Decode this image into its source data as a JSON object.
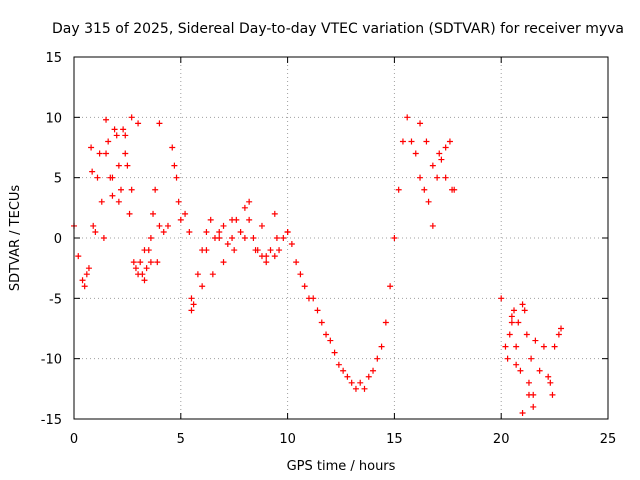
{
  "chart_data": {
    "type": "scatter",
    "title": "Day 315 of 2025, Sidereal Day-to-day VTEC variation (SDTVAR) for receiver myva",
    "xlabel": "GPS time / hours",
    "ylabel": "SDTVAR / TECUs",
    "xlim": [
      0,
      25
    ],
    "ylim": [
      -15,
      15
    ],
    "xticks": [
      0,
      5,
      10,
      15,
      20,
      25
    ],
    "yticks": [
      -15,
      -10,
      -5,
      0,
      5,
      10,
      15
    ],
    "grid": true,
    "marker": "plus",
    "color": "#ff0000",
    "series": [
      {
        "name": "SDTVAR",
        "x": [
          0.0,
          0.2,
          0.4,
          0.5,
          0.6,
          0.7,
          0.8,
          0.85,
          0.9,
          1.0,
          1.1,
          1.2,
          1.3,
          1.4,
          1.5,
          1.6,
          1.7,
          1.8,
          1.9,
          2.0,
          2.1,
          2.2,
          2.3,
          2.4,
          2.5,
          2.6,
          2.7,
          2.8,
          2.9,
          3.0,
          3.1,
          3.2,
          3.3,
          3.4,
          3.5,
          3.6,
          3.7,
          3.8,
          3.9,
          4.0,
          4.2,
          4.4,
          4.6,
          4.7,
          4.8,
          4.9,
          5.0,
          5.2,
          5.4,
          5.5,
          5.6,
          5.8,
          6.0,
          6.2,
          6.4,
          6.6,
          6.8,
          7.0,
          7.2,
          7.4,
          7.6,
          7.8,
          8.0,
          8.2,
          8.4,
          8.6,
          8.8,
          9.0,
          9.2,
          9.4,
          9.6,
          9.8,
          10.0,
          10.2,
          10.4,
          10.6,
          10.8,
          11.0,
          11.2,
          11.4,
          11.6,
          11.8,
          12.0,
          12.2,
          12.4,
          12.6,
          12.8,
          13.0,
          13.2,
          13.4,
          13.6,
          13.8,
          14.0,
          14.2,
          14.4,
          14.6,
          14.8,
          15.0,
          15.2,
          15.4,
          15.6,
          15.8,
          16.0,
          16.2,
          16.4,
          16.6,
          16.8,
          17.0,
          17.2,
          17.4,
          17.6,
          17.8,
          1.5,
          1.8,
          2.1,
          2.4,
          2.7,
          3.0,
          3.3,
          3.6,
          4.0,
          5.5,
          6.0,
          6.5,
          7.0,
          7.5,
          8.0,
          8.5,
          9.0,
          9.5,
          10.0,
          6.2,
          6.8,
          7.4,
          8.2,
          8.8,
          9.4,
          16.2,
          16.5,
          16.8,
          17.1,
          17.4,
          17.7,
          20.0,
          20.2,
          20.3,
          20.4,
          20.5,
          20.6,
          20.7,
          20.8,
          20.9,
          21.0,
          21.1,
          21.2,
          21.3,
          21.4,
          21.5,
          21.6,
          21.8,
          22.0,
          22.2,
          22.4,
          22.5,
          22.7,
          22.8,
          20.5,
          20.7,
          21.0,
          21.3,
          21.5,
          22.3
        ],
        "y": [
          1.0,
          -1.5,
          -3.5,
          -4.0,
          -3.0,
          -2.5,
          7.5,
          5.5,
          1.0,
          0.5,
          5.0,
          7.0,
          3.0,
          0.0,
          9.8,
          8.0,
          5.0,
          3.5,
          9.0,
          8.5,
          6.0,
          4.0,
          9.0,
          7.0,
          6.0,
          2.0,
          10.0,
          -2.0,
          -2.5,
          -3.0,
          -2.0,
          -3.0,
          -3.5,
          -2.5,
          -1.0,
          0.0,
          2.0,
          4.0,
          -2.0,
          1.0,
          0.5,
          1.0,
          7.5,
          6.0,
          5.0,
          3.0,
          1.5,
          2.0,
          0.5,
          -6.0,
          -5.5,
          -3.0,
          -1.0,
          0.5,
          1.5,
          0.0,
          0.5,
          1.0,
          -0.5,
          0.0,
          1.5,
          0.5,
          2.5,
          1.5,
          0.0,
          -1.0,
          -1.5,
          -1.5,
          -1.0,
          -1.5,
          -1.0,
          0.0,
          0.5,
          -0.5,
          -2.0,
          -3.0,
          -4.0,
          -5.0,
          -5.0,
          -6.0,
          -7.0,
          -8.0,
          -8.5,
          -9.5,
          -10.5,
          -11.0,
          -11.5,
          -12.0,
          -12.5,
          -12.0,
          -12.5,
          -11.5,
          -11.0,
          -10.0,
          -9.0,
          -7.0,
          -4.0,
          0.0,
          4.0,
          8.0,
          10.0,
          8.0,
          7.0,
          5.0,
          4.0,
          3.0,
          1.0,
          5.0,
          6.5,
          7.5,
          8.0,
          4.0,
          7.0,
          5.0,
          3.0,
          8.5,
          4.0,
          9.5,
          -1.0,
          -2.0,
          9.5,
          -5.0,
          -4.0,
          -3.0,
          -2.0,
          -1.0,
          0.0,
          -1.0,
          -2.0,
          0.0,
          0.5,
          -1.0,
          0.0,
          1.5,
          3.0,
          1.0,
          2.0,
          9.5,
          8.0,
          6.0,
          7.0,
          5.0,
          4.0,
          -5.0,
          -9.0,
          -10.0,
          -8.0,
          -7.0,
          -6.0,
          -9.0,
          -7.0,
          -11.0,
          -14.5,
          -6.0,
          -8.0,
          -13.0,
          -10.0,
          -14.0,
          -8.5,
          -11.0,
          -9.0,
          -11.5,
          -13.0,
          -9.0,
          -8.0,
          -7.5,
          -6.5,
          -10.5,
          -5.5,
          -12.0,
          -13.0,
          -12.0
        ]
      }
    ]
  }
}
